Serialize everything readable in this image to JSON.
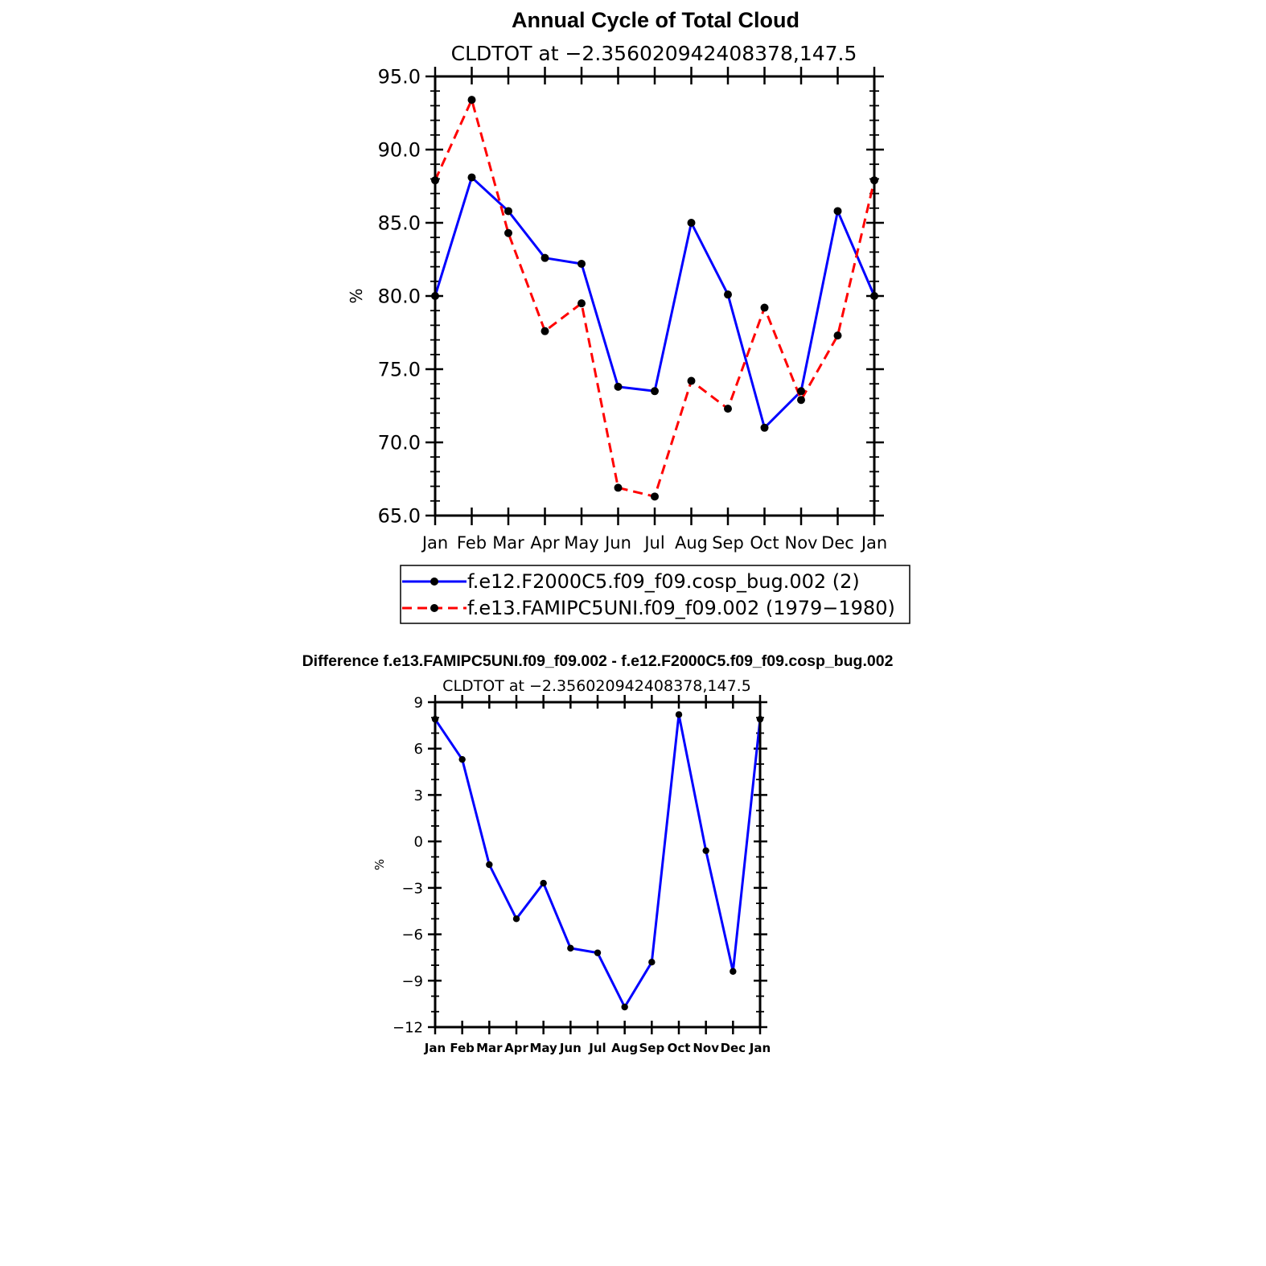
{
  "chart_data": [
    {
      "type": "line",
      "title": "Annual Cycle of Total Cloud",
      "subtitle": "CLDTOT at −2.356020942408378,147.5",
      "ylabel": "%",
      "xlabel": "",
      "ylim": [
        65,
        95
      ],
      "yticks": [
        "65.0",
        "70.0",
        "75.0",
        "80.0",
        "85.0",
        "90.0",
        "95.0"
      ],
      "categories": [
        "Jan",
        "Feb",
        "Mar",
        "Apr",
        "May",
        "Jun",
        "Jul",
        "Aug",
        "Sep",
        "Oct",
        "Nov",
        "Dec",
        "Jan"
      ],
      "grid": false,
      "legend_position": "bottom",
      "series": [
        {
          "name": "f.e12.F2000C5.f09_f09.cosp_bug.002 (2)",
          "color": "#0000ff",
          "dash": "solid",
          "values": [
            80.0,
            88.1,
            85.8,
            82.6,
            82.2,
            73.8,
            73.5,
            85.0,
            80.1,
            71.0,
            73.5,
            85.8,
            80.0
          ]
        },
        {
          "name": "f.e13.FAMIPC5UNI.f09_f09.002 (1979−1980)",
          "color": "#ff0000",
          "dash": "dashed",
          "values": [
            87.9,
            93.4,
            84.3,
            77.6,
            79.5,
            66.9,
            66.3,
            74.2,
            72.3,
            79.2,
            72.9,
            77.3,
            87.9
          ]
        }
      ]
    },
    {
      "type": "line",
      "title": "Difference f.e13.FAMIPC5UNI.f09_f09.002 - f.e12.F2000C5.f09_f09.cosp_bug.002",
      "subtitle": "CLDTOT at −2.356020942408378,147.5",
      "ylabel": "%",
      "xlabel": "",
      "ylim": [
        -12,
        9
      ],
      "yticks": [
        "−12",
        "−9",
        "−6",
        "−3",
        "0",
        "3",
        "6",
        "9"
      ],
      "categories": [
        "Jan",
        "Feb",
        "Mar",
        "Apr",
        "May",
        "Jun",
        "Jul",
        "Aug",
        "Sep",
        "Oct",
        "Nov",
        "Dec",
        "Jan"
      ],
      "grid": false,
      "series": [
        {
          "color": "#0000ff",
          "dash": "solid",
          "values": [
            7.9,
            5.3,
            -1.5,
            -5.0,
            -2.7,
            -6.9,
            -7.2,
            -10.7,
            -7.8,
            8.2,
            -0.6,
            -8.4,
            7.9
          ]
        }
      ]
    }
  ]
}
